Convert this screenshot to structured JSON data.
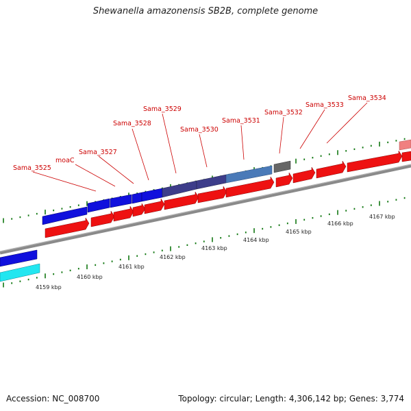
{
  "title": "Shewanella amazonensis SB2B, complete genome",
  "footer": {
    "accession": "Accession: NC_008700",
    "summary": "Topology: circular; Length: 4,306,142 bp; Genes: 3,774"
  },
  "colors": {
    "forward_cds": "#1010dd",
    "reverse_cds": "#ee1111",
    "highlight_1": "#3d3d8a",
    "highlight_2": "#4a7ab8",
    "grey_gene": "#666666",
    "cyan_gene": "#22e6f0",
    "pink_gene": "#f08080",
    "backbone": "#8a8a8a",
    "tick": "#117711",
    "label": "#cc0000"
  },
  "gene_labels": [
    "Sama_3525",
    "moaC",
    "Sama_3527",
    "Sama_3528",
    "Sama_3529",
    "Sama_3530",
    "Sama_3531",
    "Sama_3532",
    "Sama_3533",
    "Sama_3534"
  ],
  "kbp_labels": [
    "4159 kbp",
    "4160 kbp",
    "4161 kbp",
    "4162 kbp",
    "4163 kbp",
    "4164 kbp",
    "4165 kbp",
    "4166 kbp",
    "4167 kbp"
  ]
}
